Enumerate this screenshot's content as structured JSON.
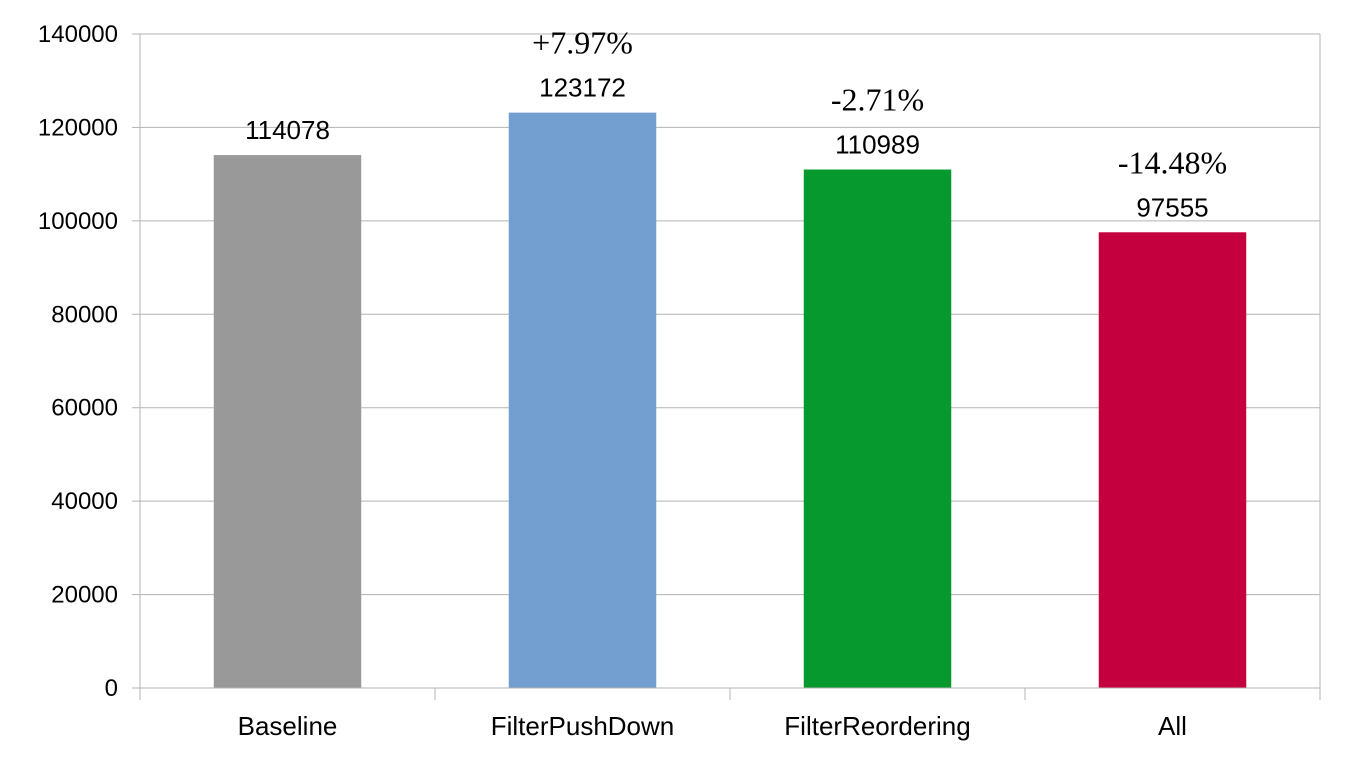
{
  "chart_data": {
    "type": "bar",
    "categories": [
      "Baseline",
      "FilterPushDown",
      "FilterReordering",
      "All"
    ],
    "values": [
      114078,
      123172,
      110989,
      97555
    ],
    "annotations": [
      "",
      "+7.97%",
      "-2.71%",
      "-14.48%"
    ],
    "colors": [
      "#999999",
      "#729fcf",
      "#069a2e",
      "#c5003e"
    ],
    "title": "",
    "xlabel": "",
    "ylabel": "",
    "ylim": [
      0,
      140000
    ],
    "yticks": [
      0,
      20000,
      40000,
      60000,
      80000,
      100000,
      120000,
      140000
    ],
    "grid": true,
    "legend": "none"
  }
}
